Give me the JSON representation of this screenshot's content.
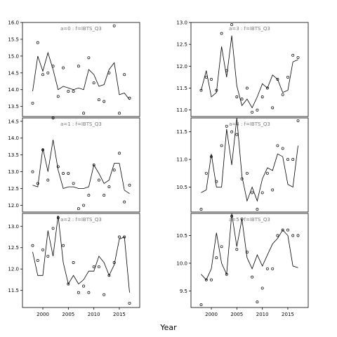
{
  "xlabel": "Year",
  "chart_data": [
    {
      "type": "line",
      "title": "a=0 : f=IBTS_Q3",
      "xlim": [
        1996,
        2019
      ],
      "ylim": [
        13.2,
        16.0
      ],
      "yticks": [
        13.5,
        14.0,
        14.5,
        15.0,
        15.5,
        16.0
      ],
      "xticks": [
        2000,
        2005,
        2010,
        2015
      ],
      "series": [
        {
          "kind": "line",
          "x": [
            1998,
            1999,
            2000,
            2001,
            2002,
            2003,
            2004,
            2005,
            2006,
            2007,
            2008,
            2009,
            2010,
            2011,
            2012,
            2013,
            2014,
            2015,
            2016,
            2017
          ],
          "y": [
            13.95,
            15.0,
            14.55,
            15.1,
            14.6,
            14.0,
            14.1,
            14.05,
            14.0,
            14.05,
            14.0,
            14.6,
            14.45,
            14.1,
            14.15,
            14.6,
            14.8,
            13.85,
            13.9,
            13.7
          ]
        },
        {
          "kind": "points",
          "x": [
            1998,
            1999,
            2000,
            2001,
            2002,
            2003,
            2004,
            2005,
            2006,
            2007,
            2008,
            2009,
            2010,
            2011,
            2012,
            2013,
            2014,
            2015,
            2016,
            2017
          ],
          "y": [
            13.6,
            15.4,
            14.45,
            14.5,
            14.7,
            13.8,
            14.65,
            13.95,
            13.95,
            14.7,
            13.3,
            14.95,
            14.2,
            13.7,
            13.65,
            14.5,
            15.9,
            13.3,
            14.45,
            13.75
          ]
        }
      ]
    },
    {
      "type": "line",
      "title": "a=3 : f=IBTS_Q3",
      "xlim": [
        1996,
        2019
      ],
      "ylim": [
        10.85,
        13.0
      ],
      "yticks": [
        11.0,
        11.5,
        12.0,
        12.5,
        13.0
      ],
      "xticks": [
        2000,
        2005,
        2010,
        2015
      ],
      "series": [
        {
          "kind": "line",
          "x": [
            1998,
            1999,
            2000,
            2001,
            2002,
            2003,
            2004,
            2005,
            2006,
            2007,
            2008,
            2009,
            2010,
            2011,
            2012,
            2013,
            2014,
            2015,
            2016,
            2017
          ],
          "y": [
            11.45,
            11.9,
            11.3,
            11.4,
            12.45,
            11.75,
            12.7,
            11.55,
            11.1,
            11.25,
            11.05,
            11.3,
            11.6,
            11.5,
            11.8,
            11.7,
            11.4,
            11.45,
            12.1,
            12.15
          ]
        },
        {
          "kind": "points",
          "x": [
            1998,
            1999,
            2000,
            2001,
            2002,
            2003,
            2004,
            2005,
            2006,
            2007,
            2008,
            2009,
            2010,
            2011,
            2012,
            2013,
            2014,
            2015,
            2016,
            2017
          ],
          "y": [
            11.45,
            11.75,
            11.7,
            11.45,
            12.75,
            11.9,
            12.95,
            11.3,
            11.25,
            11.5,
            10.95,
            11.0,
            11.3,
            11.5,
            11.05,
            11.7,
            11.35,
            11.75,
            12.25,
            12.2
          ]
        }
      ]
    },
    {
      "type": "line",
      "title": "a=1 : f=IBTS_Q3",
      "xlim": [
        1996,
        2019
      ],
      "ylim": [
        11.8,
        14.6
      ],
      "yticks": [
        12.0,
        12.5,
        13.0,
        13.5,
        14.0,
        14.5
      ],
      "xticks": [
        2000,
        2005,
        2010,
        2015
      ],
      "series": [
        {
          "kind": "line",
          "x": [
            1998,
            1999,
            2000,
            2001,
            2002,
            2003,
            2004,
            2005,
            2006,
            2007,
            2008,
            2009,
            2010,
            2011,
            2012,
            2013,
            2014,
            2015,
            2016,
            2017
          ],
          "y": [
            12.6,
            12.55,
            13.7,
            13.0,
            13.95,
            13.05,
            12.5,
            12.55,
            12.55,
            12.5,
            12.5,
            12.55,
            13.2,
            12.95,
            12.65,
            12.75,
            13.25,
            13.25,
            12.45,
            12.35
          ]
        },
        {
          "kind": "points",
          "x": [
            1998,
            1999,
            2000,
            2001,
            2002,
            2003,
            2004,
            2005,
            2006,
            2007,
            2008,
            2009,
            2010,
            2011,
            2012,
            2013,
            2014,
            2015,
            2016,
            2017
          ],
          "y": [
            13.0,
            12.65,
            13.65,
            12.75,
            14.6,
            13.15,
            12.95,
            12.95,
            12.65,
            11.9,
            12.0,
            12.3,
            13.2,
            12.75,
            12.3,
            12.55,
            13.05,
            13.55,
            12.1,
            12.6
          ]
        }
      ]
    },
    {
      "type": "line",
      "title": "a=4 : f=IBTS_Q3",
      "xlim": [
        1996,
        2019
      ],
      "ylim": [
        10.05,
        11.75
      ],
      "yticks": [
        10.5,
        11.0,
        11.5
      ],
      "xticks": [
        2000,
        2005,
        2010,
        2015
      ],
      "series": [
        {
          "kind": "line",
          "x": [
            1998,
            1999,
            2000,
            2001,
            2002,
            2003,
            2004,
            2005,
            2006,
            2007,
            2008,
            2009,
            2010,
            2011,
            2012,
            2013,
            2014,
            2015,
            2016,
            2017
          ],
          "y": [
            10.4,
            10.45,
            11.1,
            10.5,
            10.5,
            11.55,
            10.9,
            11.75,
            10.7,
            10.25,
            10.5,
            10.25,
            10.65,
            10.85,
            10.8,
            11.1,
            11.05,
            10.55,
            10.5,
            11.25
          ]
        },
        {
          "kind": "points",
          "x": [
            1998,
            1999,
            2000,
            2001,
            2002,
            2003,
            2004,
            2005,
            2006,
            2007,
            2008,
            2009,
            2010,
            2011,
            2012,
            2013,
            2014,
            2015,
            2016,
            2017
          ],
          "y": [
            10.1,
            10.75,
            11.05,
            10.6,
            11.25,
            11.6,
            11.5,
            11.45,
            10.65,
            10.75,
            10.4,
            10.1,
            10.4,
            10.75,
            10.45,
            11.25,
            11.2,
            11.0,
            11.0,
            11.7
          ]
        }
      ]
    },
    {
      "type": "line",
      "title": "a=2 : f=IBTS_Q3",
      "xlim": [
        1996,
        2019
      ],
      "ylim": [
        11.1,
        13.3
      ],
      "yticks": [
        11.5,
        12.0,
        12.5,
        13.0
      ],
      "xticks": [
        2000,
        2005,
        2010,
        2015
      ],
      "series": [
        {
          "kind": "line",
          "x": [
            1998,
            1999,
            2000,
            2001,
            2002,
            2003,
            2004,
            2005,
            2006,
            2007,
            2008,
            2009,
            2010,
            2011,
            2012,
            2013,
            2014,
            2015,
            2016,
            2017
          ],
          "y": [
            12.4,
            11.85,
            11.85,
            12.9,
            12.3,
            13.25,
            12.15,
            11.65,
            11.85,
            11.65,
            11.75,
            11.95,
            11.95,
            12.3,
            12.15,
            11.85,
            12.1,
            12.7,
            12.75,
            11.45
          ]
        },
        {
          "kind": "points",
          "x": [
            1998,
            1999,
            2000,
            2001,
            2002,
            2003,
            2004,
            2005,
            2006,
            2007,
            2008,
            2009,
            2010,
            2011,
            2012,
            2013,
            2014,
            2015,
            2016,
            2017
          ],
          "y": [
            12.55,
            12.2,
            12.45,
            12.3,
            12.95,
            13.2,
            12.55,
            11.65,
            12.15,
            11.45,
            11.6,
            11.45,
            12.05,
            12.05,
            11.4,
            11.85,
            12.15,
            12.75,
            12.75,
            11.2
          ]
        }
      ]
    },
    {
      "type": "line",
      "title": "a=5 : f=IBTS_Q3",
      "xlim": [
        1996,
        2019
      ],
      "ylim": [
        9.2,
        10.9
      ],
      "yticks": [
        9.5,
        10.0,
        10.5
      ],
      "xticks": [
        2000,
        2005,
        2010,
        2015
      ],
      "series": [
        {
          "kind": "line",
          "x": [
            1998,
            1999,
            2000,
            2001,
            2002,
            2003,
            2004,
            2005,
            2006,
            2007,
            2008,
            2009,
            2010,
            2011,
            2012,
            2013,
            2014,
            2015,
            2016,
            2017
          ],
          "y": [
            9.8,
            9.7,
            9.9,
            10.55,
            10.0,
            9.8,
            10.9,
            10.3,
            10.8,
            10.1,
            9.9,
            10.15,
            9.95,
            10.15,
            10.35,
            10.45,
            10.6,
            10.5,
            9.95,
            9.92
          ]
        },
        {
          "kind": "points",
          "x": [
            1998,
            1999,
            2000,
            2001,
            2002,
            2003,
            2004,
            2005,
            2006,
            2007,
            2008,
            2009,
            2010,
            2011,
            2012,
            2013,
            2014,
            2015,
            2016,
            2017
          ],
          "y": [
            9.25,
            9.7,
            9.7,
            10.1,
            10.3,
            9.8,
            10.85,
            10.25,
            10.8,
            10.2,
            9.75,
            9.3,
            9.55,
            9.9,
            9.9,
            10.5,
            10.6,
            10.6,
            10.5,
            10.5
          ]
        }
      ]
    }
  ]
}
